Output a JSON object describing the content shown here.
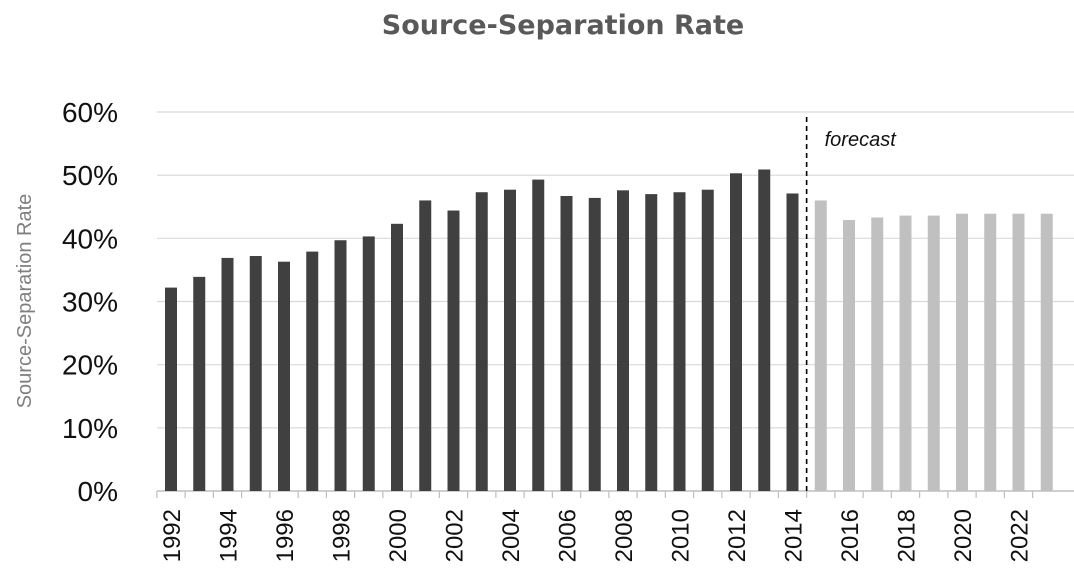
{
  "chart_data": {
    "type": "bar",
    "title": "Source-Separation Rate",
    "ylabel": "Source-Separation Rate",
    "xlabel": "",
    "ylim": [
      0,
      0.6
    ],
    "y_ticks": [
      "0%",
      "10%",
      "20%",
      "30%",
      "40%",
      "50%",
      "60%"
    ],
    "grid": true,
    "x_tick_labels": [
      "1992",
      "1994",
      "1996",
      "1998",
      "2000",
      "2002",
      "2004",
      "2006",
      "2008",
      "2010",
      "2012",
      "2014",
      "2016",
      "2018",
      "2020",
      "2022"
    ],
    "annotation": "forecast",
    "colors": {
      "actual": "#404040",
      "forecast": "#c0c0c0",
      "grid": "#d9d9d9",
      "axis": "#bfbfbf"
    },
    "categories": [
      "1992",
      "1993",
      "1994",
      "1995",
      "1996",
      "1997",
      "1998",
      "1999",
      "2000",
      "2001",
      "2002",
      "2003",
      "2004",
      "2005",
      "2006",
      "2007",
      "2008",
      "2009",
      "2010",
      "2011",
      "2012",
      "2013",
      "2014",
      "2015",
      "2016",
      "2017",
      "2018",
      "2019",
      "2020",
      "2021",
      "2022",
      "2023"
    ],
    "values": [
      0.322,
      0.339,
      0.369,
      0.372,
      0.363,
      0.379,
      0.397,
      0.403,
      0.423,
      0.46,
      0.444,
      0.473,
      0.477,
      0.493,
      0.467,
      0.464,
      0.476,
      0.47,
      0.473,
      0.477,
      0.503,
      0.509,
      0.471,
      0.46,
      0.429,
      0.433,
      0.436,
      0.436,
      0.439,
      0.439,
      0.439,
      0.439
    ],
    "forecast_start": "2015"
  }
}
